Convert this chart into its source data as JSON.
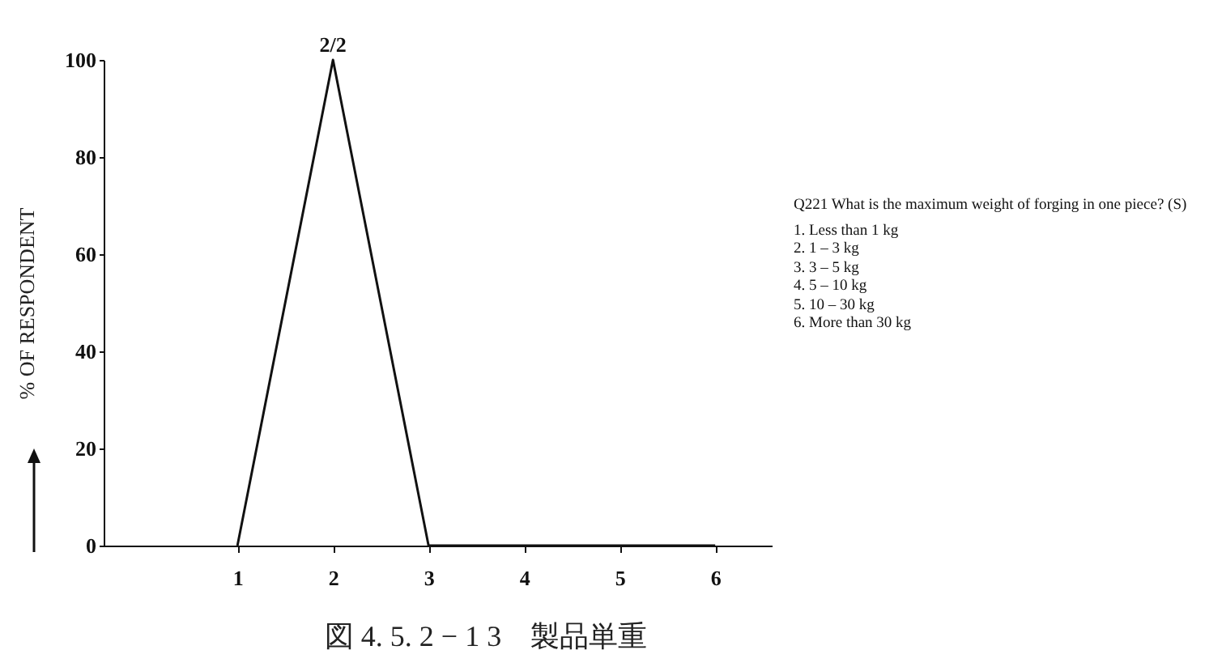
{
  "chart_data": {
    "type": "line",
    "title": "図 4. 5. 2 − 1 3　製品単重",
    "ylabel": "% OF RESPONDENT",
    "x": [
      1,
      2,
      3,
      4,
      5,
      6
    ],
    "series": [
      {
        "color": "#111111",
        "values": [
          0,
          100,
          0,
          0,
          0,
          0
        ]
      }
    ],
    "xlim": [
      -0.4,
      6.6
    ],
    "xticks": [
      1,
      2,
      3,
      4,
      5,
      6
    ],
    "ylim": [
      0,
      100
    ],
    "yticks": [
      0,
      20,
      40,
      60,
      80,
      100
    ],
    "grid": false,
    "marker": "none",
    "line_style": "solid",
    "annotations": [
      {
        "text": "2/2",
        "x": 2,
        "y": 100
      },
      "Q221 What is the maximum weight of forging in one piece?  (S)",
      "1.  Less than 1 kg",
      "2.  1 – 3 kg",
      "3.  3 – 5 kg",
      "4.  5 – 10 kg",
      "5.  10 – 30 kg",
      "6.  More than 30 kg"
    ]
  }
}
